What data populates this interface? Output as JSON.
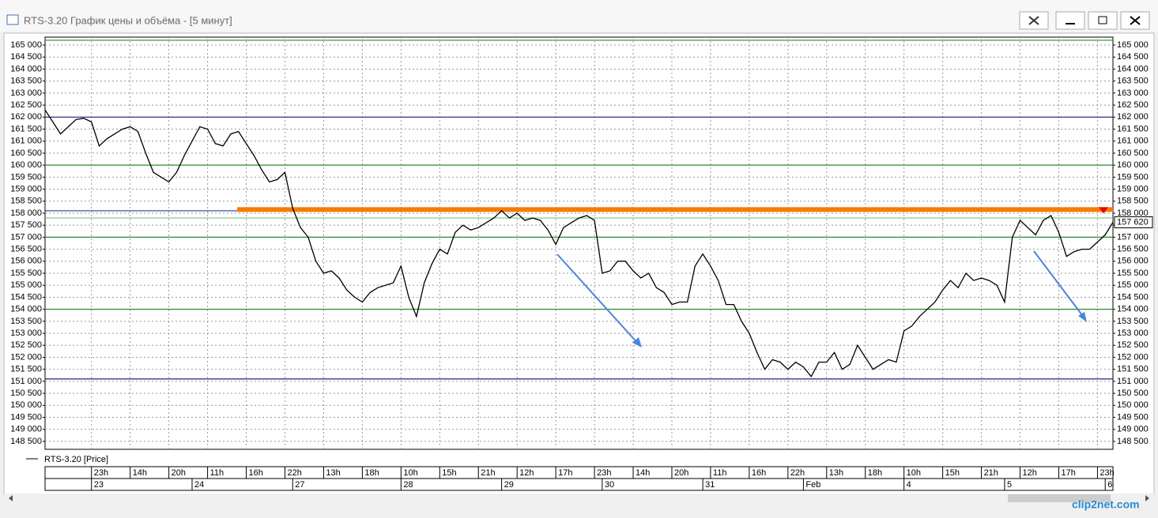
{
  "window": {
    "title": "RTS-3.20 График цены и объёма - [5 минут]",
    "watermark": "clip2net.com"
  },
  "chart_data": {
    "type": "line",
    "categories": [
      null,
      null,
      null,
      null,
      null,
      null,
      "23h",
      null,
      null,
      null,
      null,
      "14h",
      null,
      null,
      null,
      null,
      "20h",
      null,
      null,
      null,
      null,
      "11h",
      null,
      null,
      null,
      null,
      "16h",
      null,
      null,
      null,
      null,
      "22h",
      null,
      null,
      null,
      null,
      "13h",
      null,
      null,
      null,
      null,
      "18h",
      null,
      null,
      null,
      null,
      "10h",
      null,
      null,
      null,
      null,
      "15h",
      null,
      null,
      null,
      null,
      "21h",
      null,
      null,
      null,
      null,
      "12h",
      null,
      null,
      null,
      null,
      "17h",
      null,
      null,
      null,
      null,
      "23h",
      null,
      null,
      null,
      null,
      "14h",
      null,
      null,
      null,
      null,
      "20h",
      null,
      null,
      null,
      null,
      "11h",
      null,
      null,
      null,
      null,
      "16h",
      null,
      null,
      null,
      null,
      "22h",
      null,
      null,
      null,
      null,
      "13h",
      null,
      null,
      null,
      null,
      "18h",
      null,
      null,
      null,
      null,
      "10h",
      null,
      null,
      null,
      null,
      "15h",
      null,
      null,
      null,
      null,
      "21h",
      null,
      null,
      null,
      null,
      "12h",
      null,
      null,
      null,
      null,
      "17h",
      null,
      null,
      null,
      null,
      "23h",
      null,
      null
    ],
    "dates": [
      null,
      null,
      null,
      null,
      null,
      null,
      "23",
      null,
      null,
      null,
      null,
      null,
      null,
      null,
      null,
      null,
      null,
      null,
      null,
      "24",
      null,
      null,
      null,
      null,
      null,
      null,
      null,
      null,
      null,
      null,
      null,
      null,
      "27",
      null,
      null,
      null,
      null,
      null,
      null,
      null,
      null,
      null,
      null,
      null,
      null,
      null,
      "28",
      null,
      null,
      null,
      null,
      null,
      null,
      null,
      null,
      null,
      null,
      null,
      null,
      "29",
      null,
      null,
      null,
      null,
      null,
      null,
      null,
      null,
      null,
      null,
      null,
      null,
      "30",
      null,
      null,
      null,
      null,
      null,
      null,
      null,
      null,
      null,
      null,
      null,
      null,
      "31",
      null,
      null,
      null,
      null,
      null,
      null,
      null,
      null,
      null,
      null,
      null,
      null,
      "Feb",
      null,
      null,
      null,
      null,
      null,
      null,
      null,
      null,
      null,
      null,
      null,
      null,
      "4",
      null,
      null,
      null,
      null,
      null,
      null,
      null,
      null,
      null,
      null,
      null,
      null,
      "5",
      null,
      null,
      null,
      null,
      null,
      null,
      null,
      null,
      null,
      null,
      null,
      null,
      "6",
      null
    ],
    "series": [
      {
        "name": "RTS-3.20 [Price]",
        "color": "#000000",
        "values": [
          162300,
          161800,
          161300,
          161600,
          161900,
          161950,
          161800,
          160800,
          161100,
          161300,
          161500,
          161600,
          161400,
          160500,
          159700,
          159500,
          159300,
          159700,
          160400,
          161000,
          161600,
          161500,
          160900,
          160800,
          161300,
          161400,
          160900,
          160400,
          159800,
          159300,
          159400,
          159700,
          158200,
          157400,
          157000,
          156000,
          155500,
          155600,
          155300,
          154800,
          154500,
          154300,
          154700,
          154900,
          155000,
          155100,
          155800,
          154500,
          153700,
          155100,
          155900,
          156500,
          156300,
          157200,
          157500,
          157300,
          157400,
          157600,
          157800,
          158100,
          157800,
          158000,
          157700,
          157800,
          157700,
          157300,
          156700,
          157400,
          157600,
          157800,
          157900,
          157700,
          155500,
          155600,
          156000,
          156000,
          155600,
          155300,
          155500,
          154900,
          154700,
          154200,
          154300,
          154300,
          155800,
          156300,
          155800,
          155200,
          154200,
          154200,
          153500,
          153000,
          152200,
          151500,
          151900,
          151800,
          151500,
          151800,
          151600,
          151200,
          151800,
          151800,
          152200,
          151500,
          151700,
          152500,
          152000,
          151500,
          151700,
          151900,
          151800,
          153100,
          153300,
          153700,
          154000,
          154300,
          154800,
          155200,
          154900,
          155500,
          155200,
          155300,
          155200,
          155000,
          154300,
          157000,
          157700,
          157400,
          157100,
          157700,
          157900,
          157200,
          156200,
          156400,
          156500,
          156500,
          156800,
          157100,
          157620
        ]
      }
    ],
    "ylim": [
      148170,
      165330
    ],
    "yticks": [
      {
        "value": 148500,
        "label": "148 500"
      },
      {
        "value": 149000,
        "label": "149 000"
      },
      {
        "value": 149500,
        "label": "149 500"
      },
      {
        "value": 150000,
        "label": "150 000"
      },
      {
        "value": 150500,
        "label": "150 500"
      },
      {
        "value": 151000,
        "label": "151 000"
      },
      {
        "value": 151500,
        "label": "151 500"
      },
      {
        "value": 152000,
        "label": "152 000"
      },
      {
        "value": 152500,
        "label": "152 500"
      },
      {
        "value": 153000,
        "label": "153 000"
      },
      {
        "value": 153500,
        "label": "153 500"
      },
      {
        "value": 154000,
        "label": "154 000"
      },
      {
        "value": 154500,
        "label": "154 500"
      },
      {
        "value": 155000,
        "label": "155 000"
      },
      {
        "value": 155500,
        "label": "155 500"
      },
      {
        "value": 156000,
        "label": "156 000"
      },
      {
        "value": 156500,
        "label": "156 500"
      },
      {
        "value": 157000,
        "label": "157 000"
      },
      {
        "value": 157500,
        "label": "157 500"
      },
      {
        "value": 158000,
        "label": "158 000"
      },
      {
        "value": 158500,
        "label": "158 500"
      },
      {
        "value": 159000,
        "label": "159 000"
      },
      {
        "value": 159500,
        "label": "159 500"
      },
      {
        "value": 160000,
        "label": "160 000"
      },
      {
        "value": 160500,
        "label": "160 500"
      },
      {
        "value": 161000,
        "label": "161 000"
      },
      {
        "value": 161500,
        "label": "161 500"
      },
      {
        "value": 162000,
        "label": "162 000"
      },
      {
        "value": 162500,
        "label": "162 500"
      },
      {
        "value": 163000,
        "label": "163 000"
      },
      {
        "value": 163500,
        "label": "163 500"
      },
      {
        "value": 164000,
        "label": "164 000"
      },
      {
        "value": 164500,
        "label": "164 500"
      },
      {
        "value": 165000,
        "label": "165 000"
      }
    ],
    "grid": true,
    "hlines": [
      {
        "value": 165200,
        "color": "#2e8b2e"
      },
      {
        "value": 162000,
        "color": "#1a237e"
      },
      {
        "value": 160000,
        "color": "#2e8b2e"
      },
      {
        "value": 158100,
        "color": "#1a3fa0"
      },
      {
        "value": 157800,
        "color": "#7cc47c"
      },
      {
        "value": 157000,
        "color": "#2e8b2e"
      },
      {
        "value": 154000,
        "color": "#2e8b2e"
      },
      {
        "value": 151100,
        "color": "#1a237e"
      }
    ],
    "resistance": {
      "value": 158150,
      "color": "#f57c00"
    },
    "price_tag": {
      "value": 157620,
      "label": "157 620"
    }
  }
}
